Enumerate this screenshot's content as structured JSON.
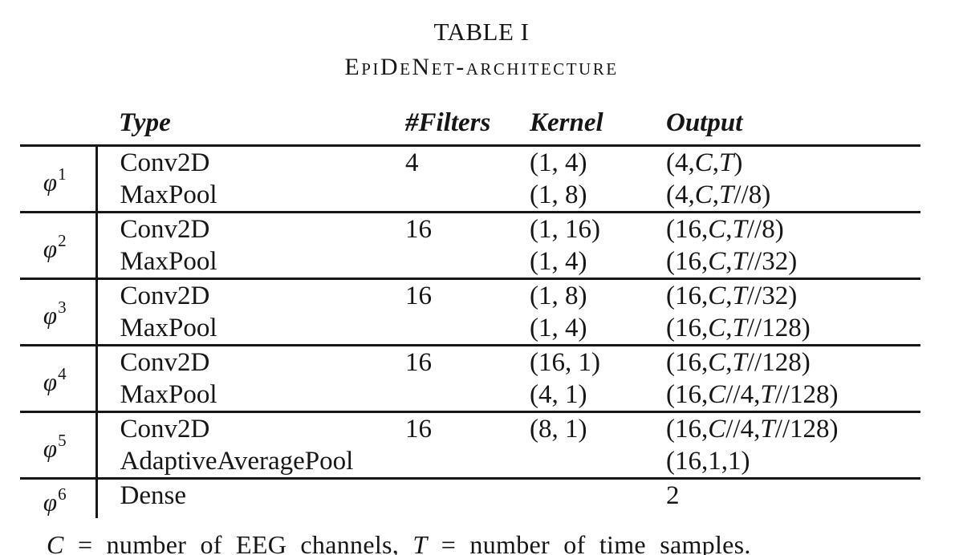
{
  "page": {
    "title": "TABLE I",
    "subtitle": "EpiDeNet-architecture",
    "footnote": "C = number of EEG channels, T = number of time samples."
  },
  "table": {
    "columns": {
      "phi": "",
      "type": "Type",
      "filters": "#Filters",
      "kernel": "Kernel",
      "output": "Output"
    },
    "groups": [
      {
        "label": {
          "base": "φ",
          "sup": "1"
        },
        "rows": [
          {
            "type": "Conv2D",
            "filters": "4",
            "kernel": "(1, 4)",
            "output": "(4,C,T)"
          },
          {
            "type": "MaxPool",
            "filters": "",
            "kernel": "(1, 8)",
            "output": "(4,C,T//8)"
          }
        ]
      },
      {
        "label": {
          "base": "φ",
          "sup": "2"
        },
        "rows": [
          {
            "type": "Conv2D",
            "filters": "16",
            "kernel": "(1, 16)",
            "output": "(16,C,T//8)"
          },
          {
            "type": "MaxPool",
            "filters": "",
            "kernel": "(1, 4)",
            "output": "(16,C,T//32)"
          }
        ]
      },
      {
        "label": {
          "base": "φ",
          "sup": "3"
        },
        "rows": [
          {
            "type": "Conv2D",
            "filters": "16",
            "kernel": "(1, 8)",
            "output": "(16,C,T//32)"
          },
          {
            "type": "MaxPool",
            "filters": "",
            "kernel": "(1, 4)",
            "output": "(16,C,T//128)"
          }
        ]
      },
      {
        "label": {
          "base": "φ",
          "sup": "4"
        },
        "rows": [
          {
            "type": "Conv2D",
            "filters": "16",
            "kernel": "(16, 1)",
            "output": "(16,C,T//128)"
          },
          {
            "type": "MaxPool",
            "filters": "",
            "kernel": "(4, 1)",
            "output": "(16,C//4,T//128)"
          }
        ]
      },
      {
        "label": {
          "base": "φ",
          "sup": "5"
        },
        "rows": [
          {
            "type": "Conv2D",
            "filters": "16",
            "kernel": "(8, 1)",
            "output": "(16,C//4,T//128)"
          },
          {
            "type": "AdaptiveAveragePool",
            "filters": "",
            "kernel": "",
            "output": "(16,1,1)"
          }
        ]
      },
      {
        "label": {
          "base": "φ",
          "sup": "6"
        },
        "rows": [
          {
            "type": "Dense",
            "filters": "",
            "kernel": "",
            "output": "2"
          }
        ]
      }
    ]
  }
}
